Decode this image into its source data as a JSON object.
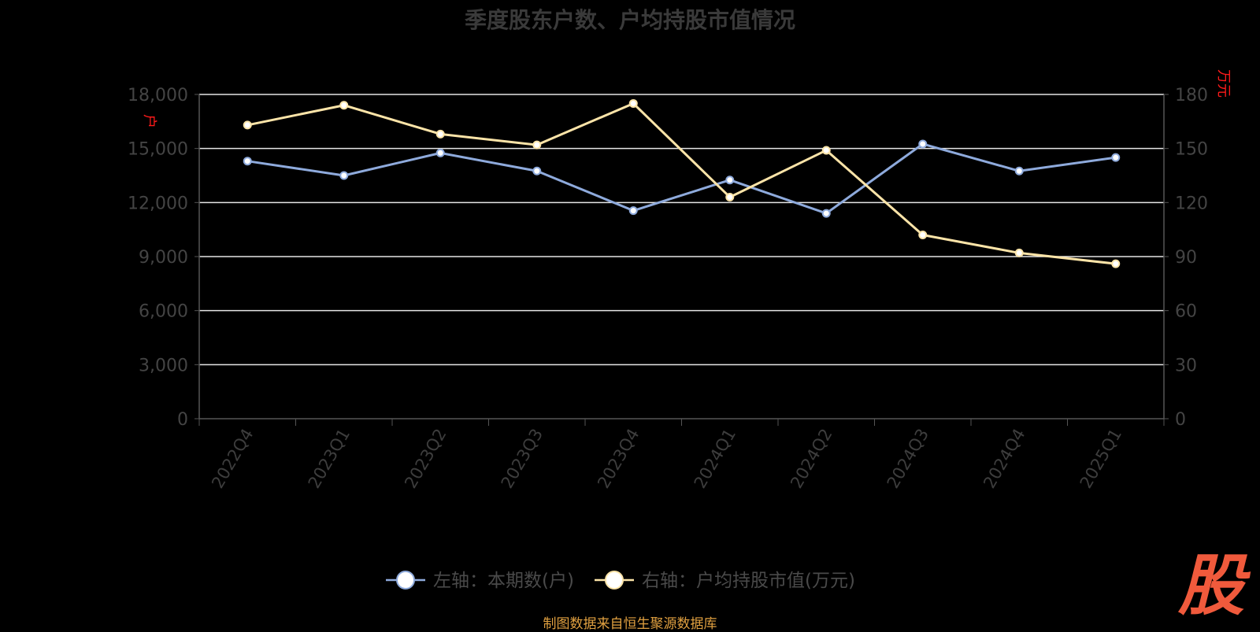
{
  "chart_data": {
    "type": "line",
    "title": "季度股东户数、户均持股市值情况",
    "categories": [
      "2022Q4",
      "2023Q1",
      "2023Q2",
      "2023Q3",
      "2023Q4",
      "2024Q1",
      "2024Q2",
      "2024Q3",
      "2024Q4",
      "2025Q1"
    ],
    "left_axis": {
      "unit": "户",
      "ylim": [
        0,
        18000
      ],
      "ticks": [
        "0",
        "3,000",
        "6,000",
        "9,000",
        "12,000",
        "15,000",
        "18,000"
      ]
    },
    "right_axis": {
      "unit": "万元",
      "ylim": [
        0,
        180
      ],
      "ticks": [
        "0",
        "30",
        "60",
        "90",
        "120",
        "150",
        "180"
      ]
    },
    "series": [
      {
        "name": "左轴：本期数(户)",
        "axis": "left",
        "color": "#8eaadc",
        "values": [
          14300,
          13500,
          14750,
          13750,
          11550,
          13250,
          11400,
          15250,
          13750,
          14500
        ]
      },
      {
        "name": "右轴：户均持股市值(万元)",
        "axis": "right",
        "color": "#fce4a8",
        "values": [
          163,
          174,
          158,
          152,
          175,
          123,
          149,
          102,
          92,
          86
        ]
      }
    ],
    "grid": true,
    "legend_position": "bottom"
  },
  "footer": {
    "source": "制图数据来自恒生聚源数据库",
    "logo_text": "股"
  }
}
